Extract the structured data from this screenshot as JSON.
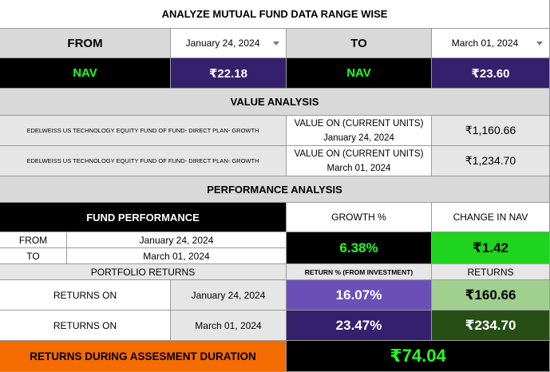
{
  "title": "ANALYZE MUTUAL FUND DATA RANGE WISE",
  "range": {
    "from_label": "FROM",
    "from_date": "January 24, 2024",
    "to_label": "TO",
    "to_date": "March 01, 2024",
    "nav_label": "NAV",
    "nav_from": "₹22.18",
    "nav_to": "₹23.60"
  },
  "value_analysis": {
    "header": "VALUE ANALYSIS",
    "rows": [
      {
        "fund": "EDELWEISS US TECHNOLOGY EQUITY FUND OF FUND- DIRECT PLAN- GROWTH",
        "label": "VALUE ON (CURRENT UNITS)",
        "date": "January 24, 2024",
        "value": "₹1,160.66"
      },
      {
        "fund": "EDELWEISS US TECHNOLOGY EQUITY FUND OF FUND- DIRECT PLAN- GROWTH",
        "label": "VALUE ON (CURRENT UNITS)",
        "date": "March 01, 2024",
        "value": "₹1,234.70"
      }
    ]
  },
  "performance": {
    "header": "PERFORMANCE ANALYSIS",
    "fund_performance_label": "FUND PERFORMANCE",
    "growth_label": "GROWTH %",
    "change_label": "CHANGE IN NAV",
    "from_label": "FROM",
    "from_date": "January 24, 2024",
    "to_label": "TO",
    "to_date": "March 01, 2024",
    "growth_value": "6.38%",
    "change_value": "₹1.42"
  },
  "portfolio": {
    "header": "PORTFOLIO RETURNS",
    "return_pct_header": "RETURN % (FROM INVESTMENT)",
    "returns_header": "RETURNS",
    "rows": [
      {
        "label": "RETURNS ON",
        "date": "January 24, 2024",
        "pct": "16.07%",
        "amount": "₹160.66"
      },
      {
        "label": "RETURNS ON",
        "date": "March 01, 2024",
        "pct": "23.47%",
        "amount": "₹234.70"
      }
    ]
  },
  "assessment": {
    "label": "RETURNS DURING ASSESMENT DURATION",
    "value": "₹74.04"
  },
  "colors": {
    "nav_green": "#21ff21",
    "purple": "#34206c",
    "medium_purple": "#6a50b6",
    "change_green": "#1ed41e",
    "light_green": "#a0cf8e",
    "dark_green": "#274e14",
    "orange": "#f46b00"
  }
}
